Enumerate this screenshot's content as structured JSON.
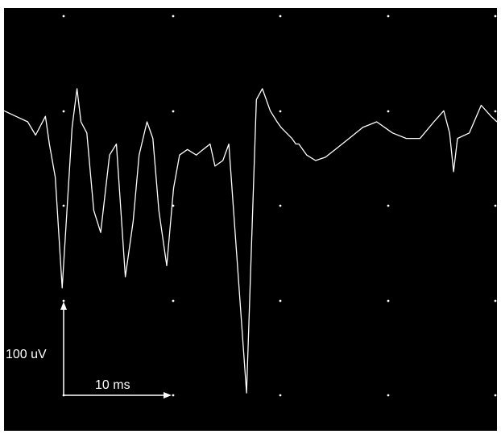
{
  "chart_data": {
    "type": "line",
    "title": "",
    "xlabel": "",
    "ylabel": "",
    "background": "#000000",
    "trace_color": "#ffffff",
    "grid": "dotted",
    "xlim": [
      0,
      50
    ],
    "ylim": [
      -230,
      90
    ],
    "scale_bar": {
      "vertical_label": "100 uV",
      "horizontal_label": "10 ms",
      "vertical_value_uV": 100,
      "horizontal_value_ms": 10
    },
    "series": [
      {
        "x": [
          0,
          1.2,
          2.4,
          3.2,
          4.2,
          4.6,
          5.2,
          5.9,
          6.9,
          7.4,
          7.8,
          8.4,
          9.1,
          9.8,
          10.7,
          11.4,
          12.3,
          13.1,
          13.7,
          14.5,
          15.1,
          15.7,
          16.5,
          17.2,
          17.8,
          18.6,
          19.5,
          20.2,
          20.9,
          21.4,
          22.2,
          22.8,
          24.6,
          25.6,
          26.2,
          27.0,
          27.7,
          28.1,
          29.2,
          29.6,
          29.9,
          30.7,
          31.6,
          32.6,
          33.6,
          35.0,
          36.4,
          37.8,
          39.4,
          40.8,
          42.2,
          43.6,
          44.6,
          45.2,
          45.6,
          46.0,
          47.2,
          48.4,
          49.4,
          50.0
        ],
        "y": [
          30,
          25,
          20,
          8,
          25,
          0,
          -30,
          -130,
          15,
          50,
          20,
          10,
          -60,
          -80,
          -10,
          0,
          -120,
          -70,
          -10,
          20,
          5,
          -60,
          -110,
          -40,
          -10,
          -5,
          -10,
          -5,
          0,
          -20,
          -15,
          0,
          -225,
          40,
          50,
          30,
          20,
          15,
          5,
          0,
          0,
          -10,
          -15,
          -12,
          -5,
          5,
          15,
          20,
          10,
          5,
          5,
          20,
          30,
          10,
          -25,
          5,
          10,
          35,
          25,
          20
        ]
      }
    ]
  }
}
